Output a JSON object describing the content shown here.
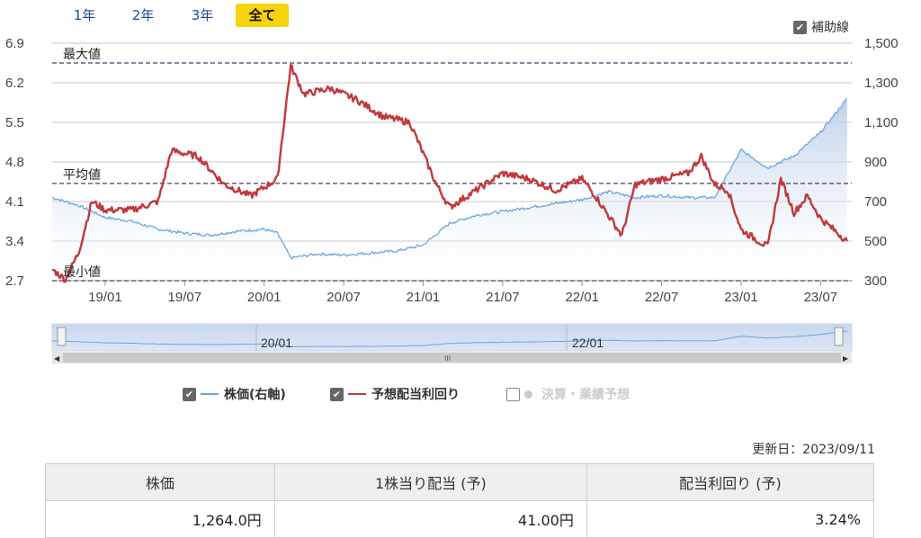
{
  "tabs": [
    {
      "label": "1年",
      "active": false
    },
    {
      "label": "2年",
      "active": false
    },
    {
      "label": "3年",
      "active": false
    },
    {
      "label": "全て",
      "active": true
    }
  ],
  "aux_label": "補助線",
  "legend": [
    {
      "label": "株価(右軸)",
      "color": "#6aa6e0",
      "checked": true
    },
    {
      "label": "予想配当利回り",
      "color": "#c0393b",
      "checked": true
    },
    {
      "label": "決算・業績予想",
      "color": "#cccccc",
      "checked": false
    }
  ],
  "updated": "更新日：2023/09/11",
  "table": {
    "headers": [
      "株価",
      "1株当り配当 (予)",
      "配当利回り (予)"
    ],
    "values": [
      "1,264.0円",
      "41.00円",
      "3.24%"
    ]
  },
  "chart_data": {
    "type": "line",
    "y_left": {
      "ticks": [
        "6.9",
        "6.2",
        "5.5",
        "4.8",
        "4.1",
        "3.4",
        "2.7"
      ],
      "range": [
        2.7,
        6.9
      ]
    },
    "y_right": {
      "ticks": [
        "1,500",
        "1,300",
        "1,100",
        "900",
        "700",
        "500",
        "300"
      ],
      "range": [
        300,
        1500
      ]
    },
    "x_ticks": [
      "19/01",
      "19/07",
      "20/01",
      "20/07",
      "21/01",
      "21/07",
      "22/01",
      "22/07",
      "23/01",
      "23/07"
    ],
    "reference_lines": [
      {
        "label": "最大値",
        "value": 6.55
      },
      {
        "label": "平均値",
        "value": 4.42
      },
      {
        "label": "最小値",
        "value": 2.7
      }
    ],
    "series": [
      {
        "name": "株価(右軸)",
        "axis": "right",
        "color": "#6aa6e0",
        "x": [
          "18/09",
          "18/11",
          "19/01",
          "19/03",
          "19/05",
          "19/07",
          "19/09",
          "19/11",
          "20/01",
          "20/02",
          "20/03",
          "20/05",
          "20/07",
          "20/09",
          "20/11",
          "21/01",
          "21/03",
          "21/05",
          "21/07",
          "21/09",
          "21/11",
          "22/01",
          "22/03",
          "22/05",
          "22/07",
          "22/09",
          "22/11",
          "23/01",
          "23/03",
          "23/05",
          "23/07",
          "23/09"
        ],
        "values": [
          720,
          680,
          620,
          600,
          560,
          540,
          530,
          550,
          560,
          540,
          415,
          435,
          430,
          440,
          450,
          480,
          590,
          630,
          650,
          670,
          690,
          710,
          750,
          720,
          730,
          720,
          720,
          960,
          870,
          930,
          1050,
          1220
        ]
      },
      {
        "name": "予想配当利回り",
        "axis": "left",
        "color": "#c0393b",
        "x": [
          "18/09",
          "18/10",
          "18/11",
          "18/12",
          "19/01",
          "19/03",
          "19/05",
          "19/06",
          "19/08",
          "19/10",
          "19/12",
          "20/02",
          "20/03",
          "20/04",
          "20/06",
          "20/08",
          "20/10",
          "20/12",
          "21/02",
          "21/03",
          "21/05",
          "21/07",
          "21/09",
          "21/11",
          "22/01",
          "22/02",
          "22/04",
          "22/05",
          "22/07",
          "22/09",
          "22/10",
          "22/11",
          "22/12",
          "23/01",
          "23/03",
          "23/04",
          "23/05",
          "23/06",
          "23/07",
          "23/09"
        ],
        "values": [
          2.9,
          2.72,
          3.2,
          4.1,
          3.95,
          3.95,
          4.1,
          5.0,
          4.9,
          4.4,
          4.2,
          4.5,
          6.5,
          6.0,
          6.1,
          5.9,
          5.6,
          5.5,
          4.4,
          4.0,
          4.3,
          4.6,
          4.5,
          4.3,
          4.5,
          4.2,
          3.5,
          4.4,
          4.5,
          4.6,
          4.9,
          4.4,
          4.3,
          3.6,
          3.3,
          4.5,
          3.9,
          4.2,
          3.8,
          3.4
        ]
      }
    ]
  }
}
